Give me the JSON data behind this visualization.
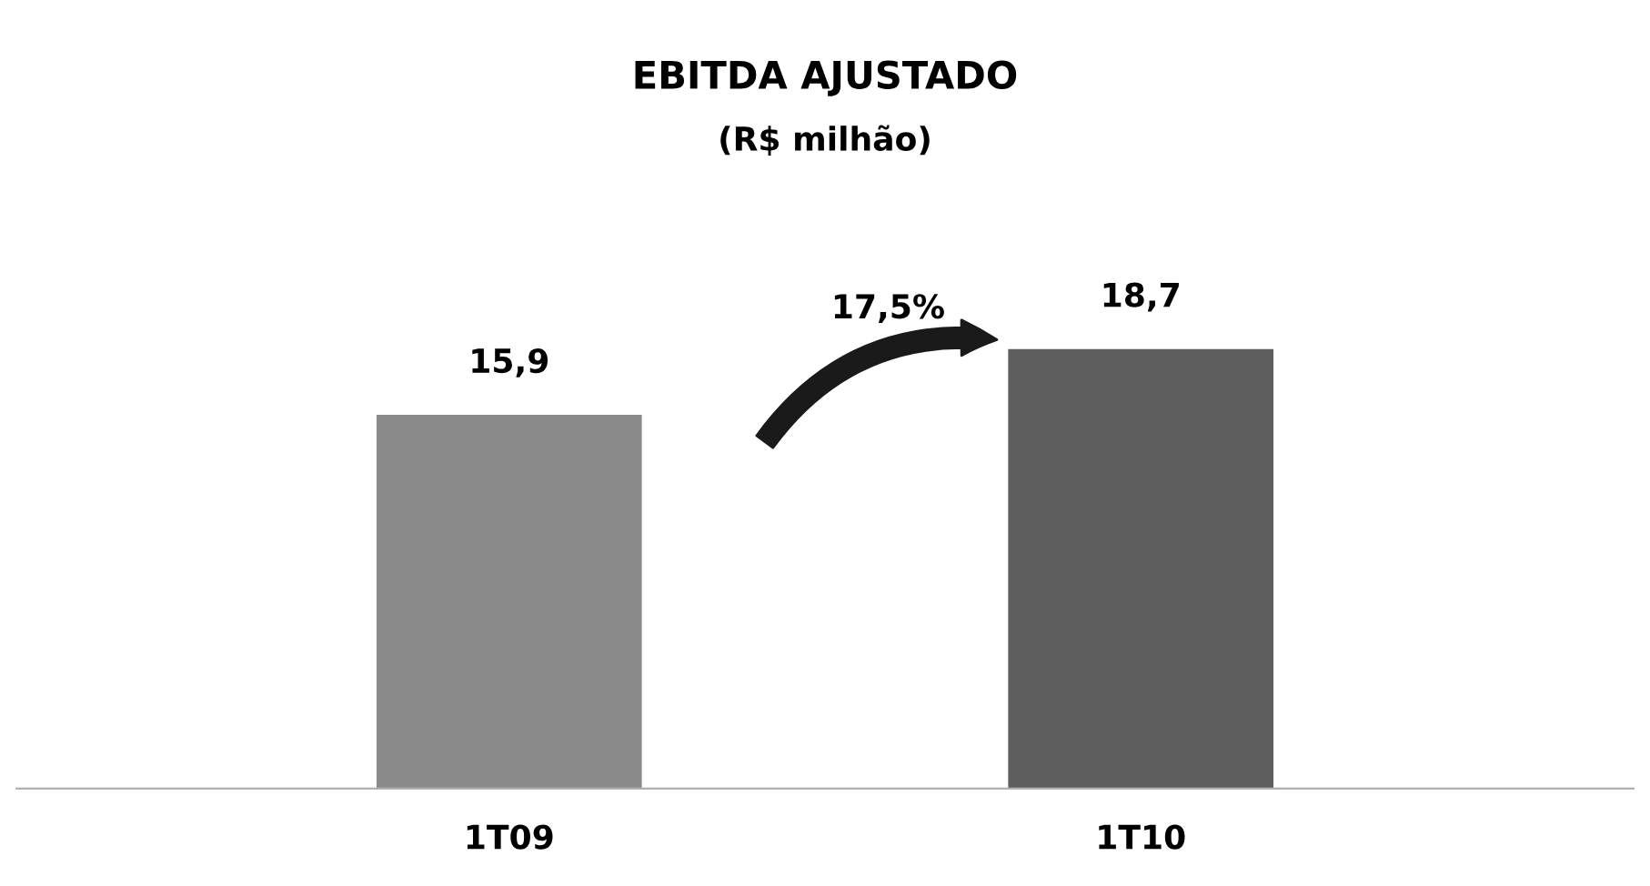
{
  "chart_data": {
    "type": "bar",
    "title": "EBITDA AJUSTADO",
    "subtitle": "(R$ milhão)",
    "categories": [
      "1T09",
      "1T10"
    ],
    "values": [
      15.9,
      18.7
    ],
    "value_labels": [
      "15,9",
      "18,7"
    ],
    "colors": [
      "#8a8a8a",
      "#5e5e5e"
    ],
    "annotations": [
      "17,5%"
    ],
    "grid": false,
    "legend": false
  }
}
